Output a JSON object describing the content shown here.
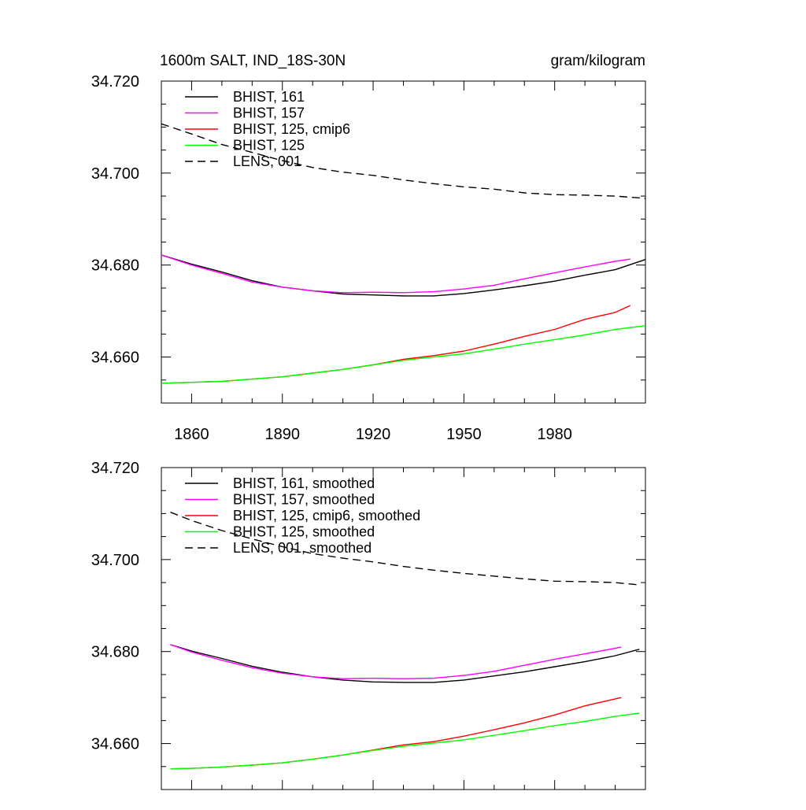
{
  "chart_data": [
    {
      "type": "line",
      "title": "1600m SALT, IND_18S-30N",
      "units": "gram/kilogram",
      "xlabel": "",
      "ylabel": "",
      "xlim": [
        1850,
        2010
      ],
      "ylim": [
        34.65,
        34.72
      ],
      "xticks": [
        1860,
        1890,
        1920,
        1950,
        1980
      ],
      "xtick_labels": [
        "1860",
        "1890",
        "1920",
        "1950",
        "1980"
      ],
      "yticks": [
        34.66,
        34.68,
        34.7,
        34.72
      ],
      "ytick_labels": [
        "34.660",
        "34.680",
        "34.700",
        "34.720"
      ],
      "grid": false,
      "legend_position": "top-left",
      "series": [
        {
          "name": "BHIST, 161",
          "color": "#000000",
          "dash": "solid",
          "x": [
            1850,
            1860,
            1870,
            1880,
            1890,
            1900,
            1910,
            1920,
            1930,
            1940,
            1950,
            1960,
            1970,
            1980,
            1990,
            2000,
            2010
          ],
          "y": [
            34.6822,
            34.6802,
            34.6785,
            34.6766,
            34.6752,
            34.6744,
            34.6737,
            34.6735,
            34.6733,
            34.6733,
            34.6738,
            34.6746,
            34.6755,
            34.6765,
            34.6778,
            34.679,
            34.6812
          ]
        },
        {
          "name": "BHIST, 157",
          "color": "#ff00ff",
          "dash": "solid",
          "x": [
            1850,
            1860,
            1870,
            1880,
            1890,
            1900,
            1910,
            1920,
            1930,
            1940,
            1950,
            1960,
            1970,
            1980,
            1990,
            2000,
            2005
          ],
          "y": [
            34.6822,
            34.68,
            34.6782,
            34.6763,
            34.6752,
            34.6744,
            34.674,
            34.6741,
            34.674,
            34.6742,
            34.6748,
            34.6756,
            34.677,
            34.6783,
            34.6796,
            34.6808,
            34.6813
          ]
        },
        {
          "name": "BHIST, 125, cmip6",
          "color": "#ff0000",
          "dash": "solid",
          "x": [
            1850,
            1860,
            1870,
            1880,
            1890,
            1900,
            1910,
            1920,
            1930,
            1940,
            1950,
            1960,
            1970,
            1980,
            1990,
            2000,
            2005
          ],
          "y": [
            34.6543,
            34.6545,
            34.6547,
            34.6552,
            34.6557,
            34.6565,
            34.6573,
            34.6583,
            34.6595,
            34.6603,
            34.6613,
            34.6628,
            34.6645,
            34.666,
            34.6682,
            34.6697,
            34.6712
          ]
        },
        {
          "name": "BHIST, 125",
          "color": "#00ff00",
          "dash": "solid",
          "x": [
            1850,
            1860,
            1870,
            1880,
            1890,
            1900,
            1910,
            1920,
            1930,
            1940,
            1950,
            1960,
            1970,
            1980,
            1990,
            2000,
            2010
          ],
          "y": [
            34.6543,
            34.6545,
            34.6547,
            34.6552,
            34.6557,
            34.6565,
            34.6573,
            34.6583,
            34.6593,
            34.66,
            34.6607,
            34.6617,
            34.6628,
            34.6638,
            34.6648,
            34.666,
            34.6668
          ]
        },
        {
          "name": "LENS, 001",
          "color": "#000000",
          "dash": "dashed",
          "x": [
            1850,
            1860,
            1870,
            1880,
            1890,
            1900,
            1910,
            1920,
            1930,
            1940,
            1950,
            1960,
            1970,
            1980,
            1990,
            2000,
            2010
          ],
          "y": [
            34.7107,
            34.7085,
            34.7062,
            34.7045,
            34.7027,
            34.7012,
            34.7002,
            34.6995,
            34.6985,
            34.6977,
            34.697,
            34.6965,
            34.6957,
            34.6953,
            34.6952,
            34.695,
            34.6945
          ]
        }
      ]
    },
    {
      "type": "line",
      "title": "",
      "xlabel": "",
      "ylabel": "",
      "xlim": [
        1850,
        2010
      ],
      "ylim": [
        34.65,
        34.72
      ],
      "xticks": [
        1860,
        1890,
        1920,
        1950,
        1980
      ],
      "yticks": [
        34.66,
        34.68,
        34.7,
        34.72
      ],
      "ytick_labels": [
        "34.660",
        "34.680",
        "34.700",
        "34.720"
      ],
      "grid": false,
      "legend_position": "top-left",
      "series": [
        {
          "name": "BHIST, 161, smoothed",
          "color": "#000000",
          "dash": "solid",
          "x": [
            1853,
            1860,
            1870,
            1880,
            1890,
            1900,
            1910,
            1920,
            1930,
            1940,
            1950,
            1960,
            1970,
            1980,
            1990,
            2000,
            2008
          ],
          "y": [
            34.6815,
            34.6801,
            34.6785,
            34.6768,
            34.6755,
            34.6745,
            34.6738,
            34.6734,
            34.6733,
            34.6733,
            34.6738,
            34.6747,
            34.6756,
            34.6767,
            34.6778,
            34.6791,
            34.6805
          ]
        },
        {
          "name": "BHIST, 157, smoothed",
          "color": "#ff00ff",
          "dash": "solid",
          "x": [
            1853,
            1860,
            1870,
            1880,
            1890,
            1900,
            1910,
            1920,
            1930,
            1940,
            1950,
            1960,
            1970,
            1980,
            1990,
            2000,
            2002
          ],
          "y": [
            34.6815,
            34.6799,
            34.6781,
            34.6765,
            34.6753,
            34.6745,
            34.6741,
            34.6742,
            34.6741,
            34.6742,
            34.6748,
            34.6757,
            34.677,
            34.6783,
            34.6795,
            34.6807,
            34.681
          ]
        },
        {
          "name": "BHIST, 125, cmip6, smoothed",
          "color": "#ff0000",
          "dash": "solid",
          "x": [
            1853,
            1860,
            1870,
            1880,
            1890,
            1900,
            1910,
            1920,
            1930,
            1940,
            1950,
            1960,
            1970,
            1980,
            1990,
            2000,
            2002
          ],
          "y": [
            34.6545,
            34.6546,
            34.6549,
            34.6553,
            34.6558,
            34.6566,
            34.6575,
            34.6586,
            34.6597,
            34.6604,
            34.6616,
            34.663,
            34.6645,
            34.6662,
            34.6682,
            34.6697,
            34.67
          ]
        },
        {
          "name": "BHIST, 125, smoothed",
          "color": "#00ff00",
          "dash": "solid",
          "x": [
            1853,
            1860,
            1870,
            1880,
            1890,
            1900,
            1910,
            1920,
            1930,
            1940,
            1950,
            1960,
            1970,
            1980,
            1990,
            2000,
            2008
          ],
          "y": [
            34.6545,
            34.6546,
            34.6549,
            34.6553,
            34.6558,
            34.6566,
            34.6575,
            34.6585,
            34.6594,
            34.6601,
            34.6608,
            34.6618,
            34.6628,
            34.6639,
            34.6648,
            34.6659,
            34.6666
          ]
        },
        {
          "name": "LENS, 001, smoothed",
          "color": "#000000",
          "dash": "dashed",
          "x": [
            1853,
            1860,
            1870,
            1880,
            1890,
            1900,
            1910,
            1920,
            1930,
            1940,
            1950,
            1960,
            1970,
            1980,
            1990,
            2000,
            2008
          ],
          "y": [
            34.7103,
            34.7085,
            34.7063,
            34.7045,
            34.7028,
            34.7013,
            34.7003,
            34.6995,
            34.6985,
            34.6977,
            34.697,
            34.6964,
            34.6958,
            34.6953,
            34.6952,
            34.695,
            34.6945
          ]
        }
      ]
    }
  ]
}
